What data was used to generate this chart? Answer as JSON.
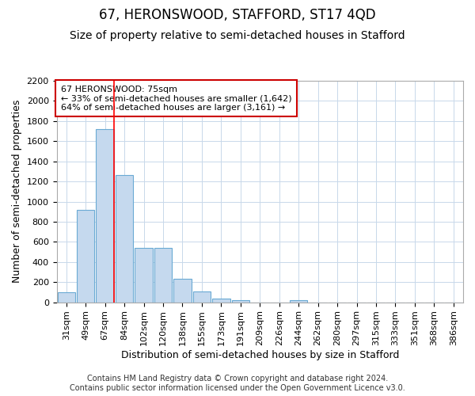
{
  "title": "67, HERONSWOOD, STAFFORD, ST17 4QD",
  "subtitle": "Size of property relative to semi-detached houses in Stafford",
  "xlabel": "Distribution of semi-detached houses by size in Stafford",
  "ylabel": "Number of semi-detached properties",
  "categories": [
    "31sqm",
    "49sqm",
    "67sqm",
    "84sqm",
    "102sqm",
    "120sqm",
    "138sqm",
    "155sqm",
    "173sqm",
    "191sqm",
    "209sqm",
    "226sqm",
    "244sqm",
    "262sqm",
    "280sqm",
    "297sqm",
    "315sqm",
    "333sqm",
    "351sqm",
    "368sqm",
    "386sqm"
  ],
  "values": [
    100,
    920,
    1720,
    1260,
    540,
    540,
    230,
    105,
    40,
    20,
    0,
    0,
    20,
    0,
    0,
    0,
    0,
    0,
    0,
    0,
    0
  ],
  "bar_color": "#c5d9ee",
  "bar_edge_color": "#6aaad4",
  "red_line_after_index": 2,
  "annotation_text": "67 HERONSWOOD: 75sqm\n← 33% of semi-detached houses are smaller (1,642)\n64% of semi-detached houses are larger (3,161) →",
  "ylim": [
    0,
    2200
  ],
  "yticks": [
    0,
    200,
    400,
    600,
    800,
    1000,
    1200,
    1400,
    1600,
    1800,
    2000,
    2200
  ],
  "footer": "Contains HM Land Registry data © Crown copyright and database right 2024.\nContains public sector information licensed under the Open Government Licence v3.0.",
  "background_color": "#ffffff",
  "grid_color": "#c8d8ea",
  "annotation_box_color": "#ffffff",
  "annotation_box_edge": "#cc0000",
  "title_fontsize": 12,
  "subtitle_fontsize": 10,
  "axis_label_fontsize": 9,
  "tick_fontsize": 8,
  "annotation_fontsize": 8,
  "footer_fontsize": 7
}
